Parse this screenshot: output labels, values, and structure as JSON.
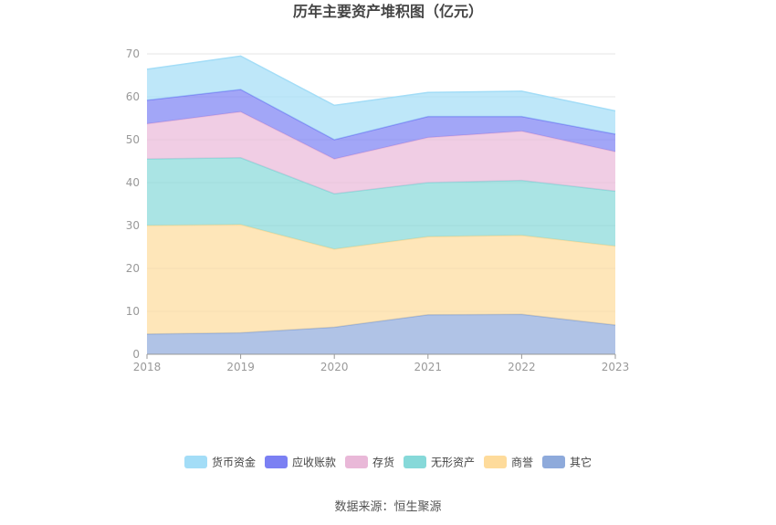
{
  "chart_data": {
    "type": "area",
    "stacked": true,
    "title": "历年主要资产堆积图（亿元）",
    "x": [
      "2018",
      "2019",
      "2020",
      "2021",
      "2022",
      "2023"
    ],
    "ylim": [
      0,
      70
    ],
    "yticks": [
      "0",
      "10",
      "20",
      "30",
      "40",
      "50",
      "60",
      "70"
    ],
    "grid": true,
    "legend_position": "bottom",
    "series": [
      {
        "name": "其它",
        "color": "#8eaadb",
        "values": [
          4.7,
          5.0,
          6.3,
          9.2,
          9.3,
          6.8
        ]
      },
      {
        "name": "商誉",
        "color": "#fedb9b",
        "values": [
          25.3,
          25.2,
          18.2,
          18.2,
          18.4,
          18.4
        ]
      },
      {
        "name": "无形资产",
        "color": "#86d9d9",
        "values": [
          15.5,
          15.6,
          12.9,
          12.6,
          12.8,
          12.8
        ]
      },
      {
        "name": "存货",
        "color": "#e9b8d8",
        "values": [
          8.2,
          10.7,
          8.1,
          10.5,
          11.5,
          9.2
        ]
      },
      {
        "name": "应收账款",
        "color": "#7b80f3",
        "values": [
          5.5,
          5.2,
          4.5,
          4.9,
          3.4,
          4.1
        ]
      },
      {
        "name": "货币资金",
        "color": "#a3ddf7",
        "values": [
          7.2,
          7.8,
          8.0,
          5.6,
          5.9,
          5.4
        ]
      }
    ]
  },
  "legend": [
    {
      "name": "货币资金",
      "color": "#a3ddf7"
    },
    {
      "name": "应收账款",
      "color": "#7b80f3"
    },
    {
      "name": "存货",
      "color": "#e9b8d8"
    },
    {
      "name": "无形资产",
      "color": "#86d9d9"
    },
    {
      "name": "商誉",
      "color": "#fedb9b"
    },
    {
      "name": "其它",
      "color": "#8eaadb"
    }
  ],
  "source": "数据来源：恒生聚源"
}
